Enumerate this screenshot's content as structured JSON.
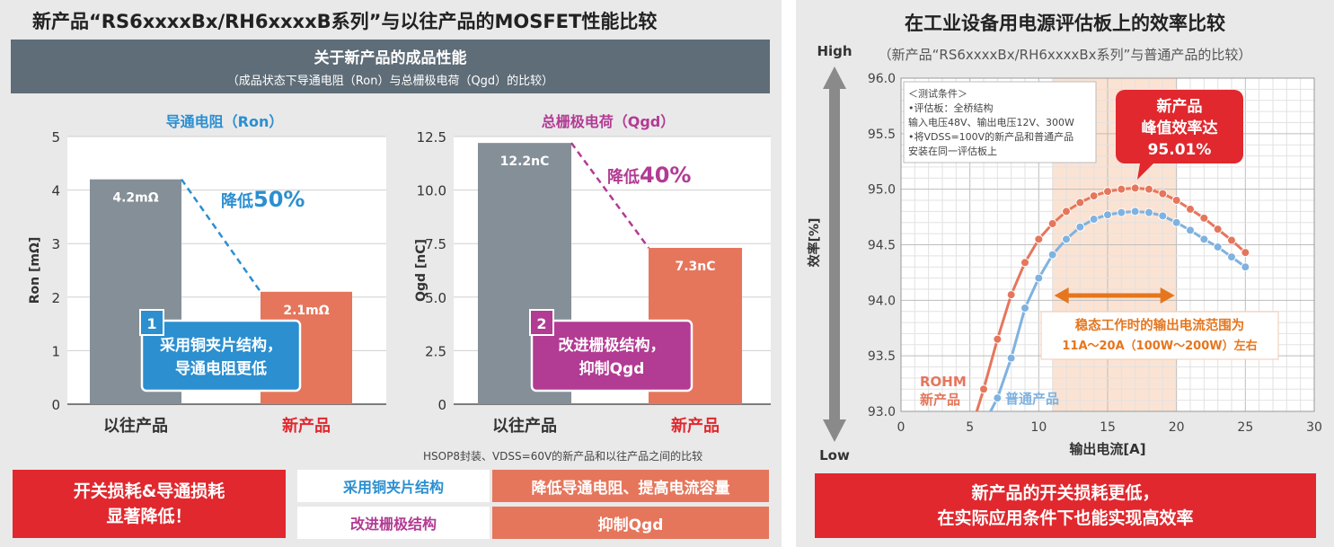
{
  "left": {
    "title": "新产品“RS6xxxxBx/RH6xxxxB系列”与以往产品的MOSFET性能比较",
    "band_title": "关于新产品的成品性能",
    "band_subtitle": "（成品状态下导通电阻（Ron）与总栅极电荷（Qgd）的比较）",
    "footnote": "HSOP8封装、VDSS=60V的新产品和以往产品之间的比较",
    "summary_red": [
      "开关损耗&导通损耗",
      "显著降低！"
    ],
    "features": [
      {
        "name": "采用铜夹片结构",
        "effect": "降低导通电阻、提高电流容量"
      },
      {
        "name": "改进栅极结构",
        "effect": "抑制Qgd"
      }
    ]
  },
  "chart_data": [
    {
      "type": "bar",
      "title": "导通电阻（Ron）",
      "ylabel": "Ron [mΩ]",
      "ylim": [
        0,
        5
      ],
      "yticks": [
        "0",
        "1",
        "2",
        "3",
        "4",
        "5"
      ],
      "categories": [
        "以往产品",
        "新产品"
      ],
      "values": [
        4.2,
        2.1
      ],
      "value_labels": [
        "4.2mΩ",
        "2.1mΩ"
      ],
      "colors": [
        "#858f98",
        "#e5765c"
      ],
      "reduction_prefix": "降低",
      "reduction_value": "50%",
      "callout_number": "1",
      "callout_lines": [
        "采用铜夹片结构，",
        "导通电阻更低"
      ],
      "accent": "#2b8fd0",
      "grid": true
    },
    {
      "type": "bar",
      "title": "总栅极电荷（Qgd）",
      "ylabel": "Qgd [nC]",
      "ylim": [
        0,
        12.5
      ],
      "yticks": [
        "0",
        "2.5",
        "5.0",
        "7.5",
        "10.0",
        "12.5"
      ],
      "categories": [
        "以往产品",
        "新产品"
      ],
      "values": [
        12.2,
        7.3
      ],
      "value_labels": [
        "12.2nC",
        "7.3nC"
      ],
      "colors": [
        "#858f98",
        "#e5765c"
      ],
      "reduction_prefix": "降低",
      "reduction_value": "40%",
      "callout_number": "2",
      "callout_lines": [
        "改进栅极结构，",
        "抑制Qgd"
      ],
      "accent": "#b23b93",
      "grid": true
    },
    {
      "type": "line",
      "title": "在工业设备用电源评估板上的效率比较",
      "subtitle": "（新产品“RS6xxxxBx/RH6xxxxBx系列”与普通产品的比较）",
      "xlabel": "输出电流[A]",
      "ylabel": "效率[%]",
      "xlim": [
        0,
        30
      ],
      "ylim": [
        93.0,
        96.0
      ],
      "xticks": [
        "0",
        "5",
        "10",
        "15",
        "20",
        "25",
        "30"
      ],
      "yticks": [
        "93.0",
        "93.5",
        "94.0",
        "94.5",
        "95.0",
        "95.5",
        "96.0"
      ],
      "axis_high": "High",
      "axis_low": "Low",
      "grid": true,
      "series": [
        {
          "name": "ROHM新产品",
          "name_lines": [
            "ROHM",
            "新产品"
          ],
          "color": "#e5765c",
          "x": [
            5.5,
            6,
            7,
            8,
            9,
            10,
            11,
            12,
            13,
            14,
            15,
            16,
            17,
            18,
            19,
            20,
            21,
            22,
            23,
            24,
            25
          ],
          "y": [
            93.0,
            93.2,
            93.65,
            94.05,
            94.34,
            94.55,
            94.69,
            94.8,
            94.88,
            94.94,
            94.98,
            95.0,
            95.01,
            95.0,
            94.96,
            94.9,
            94.82,
            94.74,
            94.64,
            94.54,
            94.43
          ]
        },
        {
          "name": "普通产品",
          "name_lines": [
            "普通产品"
          ],
          "color": "#7fb2e0",
          "x": [
            6.5,
            7,
            8,
            9,
            10,
            11,
            12,
            13,
            14,
            15,
            16,
            17,
            18,
            19,
            20,
            21,
            22,
            23,
            24,
            25
          ],
          "y": [
            93.0,
            93.12,
            93.48,
            93.93,
            94.2,
            94.41,
            94.55,
            94.66,
            94.73,
            94.77,
            94.79,
            94.8,
            94.79,
            94.76,
            94.7,
            94.63,
            94.55,
            94.48,
            94.39,
            94.3
          ]
        }
      ],
      "shaded_range": [
        11,
        20
      ],
      "range_label_lines": [
        "稳态工作时的输出电流范围为",
        "11A～20A（100W～200W）左右"
      ],
      "peak_label_lines": [
        "新产品",
        "峰值效率达",
        "95.01%"
      ],
      "test_conditions": [
        "＜测试条件＞",
        "•评估板：全桥结构",
        "  输入电压48V、输出电压12V、300W",
        "•将VDSS=100V的新产品和普通产品",
        "  安装在同一评估板上"
      ],
      "summary_lines": [
        "新产品的开关损耗更低，",
        "在实际应用条件下也能实现高效率"
      ],
      "accent": "#e0282e"
    }
  ]
}
